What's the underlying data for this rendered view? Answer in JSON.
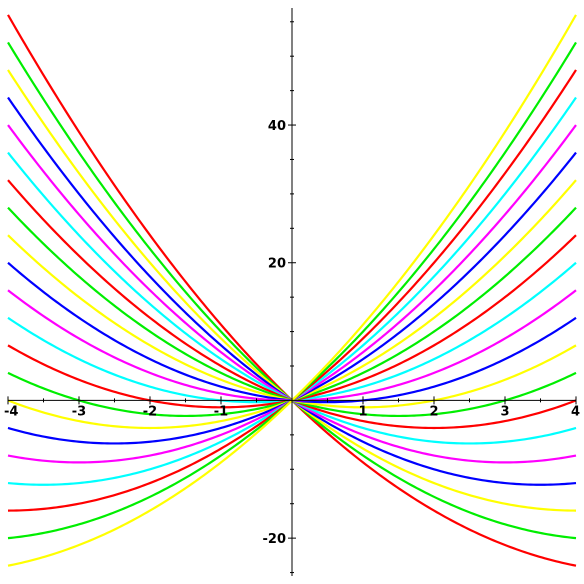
{
  "chart_data": {
    "type": "line",
    "title": "",
    "xlabel": "",
    "ylabel": "",
    "xlim": [
      -4,
      4
    ],
    "ylim": [
      -25.5,
      57
    ],
    "x_ticks": [
      -4,
      -3,
      -2,
      -1,
      1,
      2,
      3,
      4
    ],
    "y_ticks_labeled": [
      -20,
      20,
      40
    ],
    "x_tick_labels": [
      "-4",
      "-3",
      "-2",
      "-1",
      "1",
      "2",
      "3",
      "4"
    ],
    "y_tick_labels": [
      "-20",
      "20",
      "40"
    ],
    "grid": false,
    "legend": "none",
    "formula": "y = x^2 + c*x",
    "series": [
      {
        "c": -10,
        "color": "#ff0000"
      },
      {
        "c": -9,
        "color": "#00ee00"
      },
      {
        "c": -8,
        "color": "#ffff00"
      },
      {
        "c": -7,
        "color": "#0000ff"
      },
      {
        "c": -6,
        "color": "#ff00ff"
      },
      {
        "c": -5,
        "color": "#00ffff"
      },
      {
        "c": -4,
        "color": "#ff0000"
      },
      {
        "c": -3,
        "color": "#00ee00"
      },
      {
        "c": -2,
        "color": "#ffff00"
      },
      {
        "c": -1,
        "color": "#0000ff"
      },
      {
        "c": 0,
        "color": "#ff00ff"
      },
      {
        "c": 1,
        "color": "#00ffff"
      },
      {
        "c": 2,
        "color": "#ff0000"
      },
      {
        "c": 3,
        "color": "#00ee00"
      },
      {
        "c": 4,
        "color": "#ffff00"
      },
      {
        "c": 5,
        "color": "#0000ff"
      },
      {
        "c": 6,
        "color": "#ff00ff"
      },
      {
        "c": 7,
        "color": "#00ffff"
      },
      {
        "c": 8,
        "color": "#ff0000"
      },
      {
        "c": 9,
        "color": "#00ee00"
      },
      {
        "c": 10,
        "color": "#ffff00"
      }
    ]
  }
}
